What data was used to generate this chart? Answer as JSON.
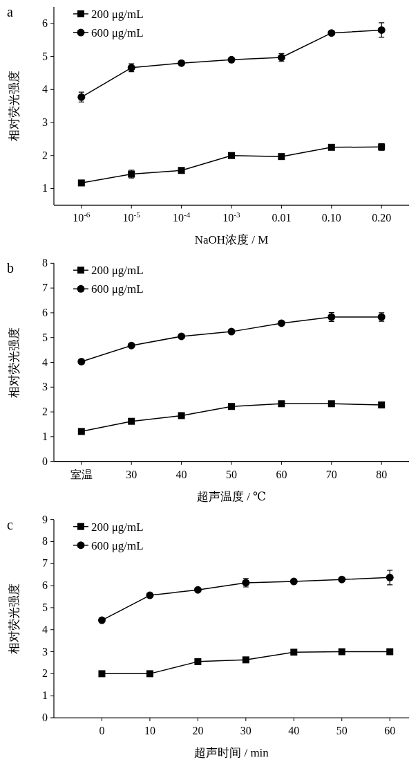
{
  "chart_data": [
    {
      "type": "line",
      "title": "a",
      "ylabel": "相对荧光强度",
      "xlabel": "NaOH浓度 / M",
      "categories": [
        "10$^{-6}$",
        "10$^{-5}$",
        "10$^{-4}$",
        "10$^{-3}$",
        "0.01",
        "0.10",
        "0.20"
      ],
      "ylim": [
        0.5,
        6.5
      ],
      "yticks": [
        1,
        2,
        3,
        4,
        5,
        6
      ],
      "legend": "top left",
      "grid": false,
      "series": [
        {
          "name": "200 μg/mL",
          "color": "#000000",
          "marker": "square",
          "values": [
            1.17,
            1.44,
            1.55,
            2.0,
            1.97,
            2.25,
            2.26
          ],
          "errors": [
            null,
            0.12,
            null,
            null,
            null,
            null,
            0.1
          ]
        },
        {
          "name": "600 μg/mL",
          "color": "#000000",
          "marker": "circle",
          "values": [
            3.77,
            4.66,
            4.8,
            4.9,
            4.97,
            5.71,
            5.8
          ],
          "errors": [
            0.15,
            0.12,
            null,
            null,
            0.12,
            null,
            0.22
          ]
        }
      ]
    },
    {
      "type": "line",
      "title": "b",
      "ylabel": "相对荧光强度",
      "xlabel": "超声温度 / ℃",
      "categories": [
        "室温",
        "30",
        "40",
        "50",
        "60",
        "70",
        "80"
      ],
      "ylim": [
        0,
        8
      ],
      "yticks": [
        0,
        1,
        2,
        3,
        4,
        5,
        6,
        7,
        8
      ],
      "legend": "top left",
      "grid": false,
      "series": [
        {
          "name": "200 μg/mL",
          "color": "#000000",
          "marker": "square",
          "values": [
            1.21,
            1.62,
            1.85,
            2.22,
            2.33,
            2.33,
            2.28
          ]
        },
        {
          "name": "600 μg/mL",
          "color": "#000000",
          "marker": "circle",
          "values": [
            4.03,
            4.68,
            5.05,
            5.24,
            5.58,
            5.83,
            5.83
          ],
          "errors": [
            null,
            null,
            null,
            null,
            null,
            0.18,
            0.17
          ]
        }
      ]
    },
    {
      "type": "line",
      "title": "c",
      "ylabel": "相对荧光强度",
      "xlabel": "超声时间 / min",
      "x": [
        0,
        10,
        20,
        30,
        40,
        50,
        60
      ],
      "xlim": [
        -10,
        64
      ],
      "xticks": [
        0,
        10,
        20,
        30,
        40,
        50,
        60
      ],
      "ylim": [
        0,
        9
      ],
      "yticks": [
        0,
        1,
        2,
        3,
        4,
        5,
        6,
        7,
        8,
        9
      ],
      "legend": "top left",
      "grid": false,
      "series": [
        {
          "name": "200 μg/mL",
          "color": "#000000",
          "marker": "square",
          "values": [
            2.0,
            2.0,
            2.55,
            2.63,
            2.98,
            3.0,
            3.0
          ]
        },
        {
          "name": "600 μg/mL",
          "color": "#000000",
          "marker": "circle",
          "values": [
            4.43,
            5.56,
            5.81,
            6.13,
            6.19,
            6.28,
            6.37
          ],
          "errors": [
            null,
            null,
            null,
            0.19,
            null,
            null,
            0.33
          ]
        }
      ]
    }
  ]
}
